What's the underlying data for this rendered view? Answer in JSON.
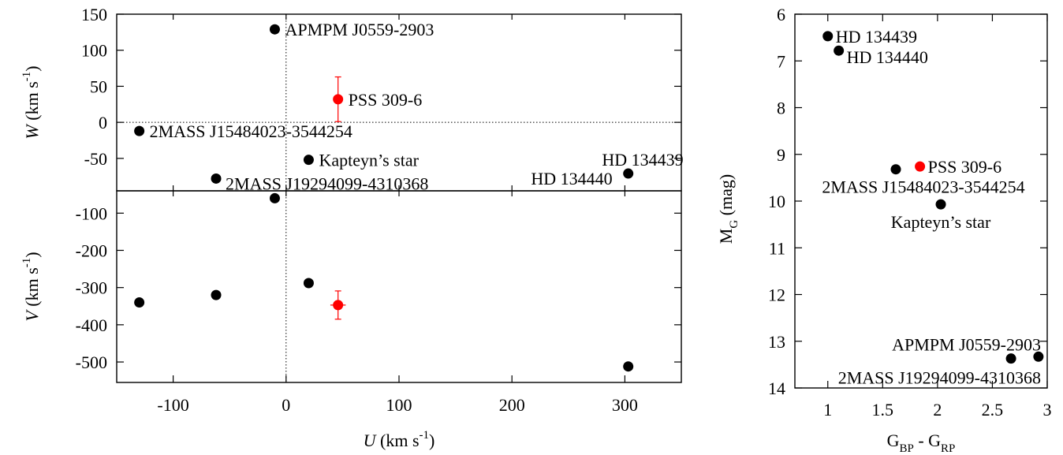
{
  "chart_data": [
    {
      "id": "uw",
      "type": "scatter",
      "title": "",
      "xlabel": "",
      "ylabel": {
        "italic": "W",
        "text": " (km s",
        "sup": "-1",
        "tail": ")"
      },
      "xlim": [
        -150,
        350
      ],
      "ylim": [
        -95,
        150
      ],
      "yticks": [
        150,
        100,
        50,
        0,
        -50
      ],
      "zero_lines": {
        "x": 0,
        "y": 0
      },
      "points": [
        {
          "name": "APMPM J0559-2903",
          "x": -10,
          "y": 129,
          "label": "APMPM J0559-2903",
          "label_pos": "right"
        },
        {
          "name": "PSS 309-6",
          "x": 46,
          "y": 32,
          "yerr": 31,
          "label": "PSS 309-6",
          "label_pos": "right",
          "highlight": true
        },
        {
          "name": "2MASS J15484023-3544254",
          "x": -130,
          "y": -12,
          "label": "2MASS J15484023-3544254",
          "label_pos": "right"
        },
        {
          "name": "Kapteyn's star",
          "x": 20,
          "y": -52,
          "label": "Kapteyn’s star",
          "label_pos": "right"
        },
        {
          "name": "2MASS J19294099-4310368",
          "x": -62,
          "y": -78,
          "label": "2MASS J19294099-4310368",
          "label_pos": "right-low"
        },
        {
          "name": "HD 134439",
          "x": 303,
          "y": -71,
          "label": "HD 134439",
          "label_pos": "left-up"
        },
        {
          "name": "HD 134440",
          "x": 303,
          "y": -71,
          "label": "HD 134440",
          "label_pos": "left-down"
        }
      ]
    },
    {
      "id": "uv",
      "type": "scatter",
      "title": "",
      "xlabel": {
        "italic": "U",
        "text": " (km s",
        "sup": "-1",
        "tail": ")"
      },
      "ylabel": {
        "italic": "V",
        "text": " (km s",
        "sup": "-1",
        "tail": ")"
      },
      "xlim": [
        -150,
        350
      ],
      "ylim": [
        -555,
        -40
      ],
      "xticks": [
        -100,
        0,
        100,
        200,
        300
      ],
      "yticks": [
        -100,
        -200,
        -300,
        -400,
        -500
      ],
      "zero_lines": {
        "x": 0
      },
      "points": [
        {
          "name": "APMPM J0559-2903",
          "x": -10,
          "y": -60
        },
        {
          "name": "Kapteyn's star",
          "x": 20,
          "y": -288
        },
        {
          "name": "PSS 309-6",
          "x": 46,
          "y": -347,
          "yerr": 38,
          "xerr": 4,
          "highlight": true
        },
        {
          "name": "2MASS J15484023-3544254",
          "x": -130,
          "y": -340
        },
        {
          "name": "2MASS J19294099-4310368",
          "x": -62,
          "y": -320
        },
        {
          "name": "HD 134439/HD 134440",
          "x": 303,
          "y": -512
        }
      ]
    },
    {
      "id": "cmd",
      "type": "scatter",
      "title": "",
      "xlabel": {
        "text": "G",
        "sub": "BP",
        "mid": " - G",
        "sub2": "RP"
      },
      "ylabel": {
        "text": "M",
        "sub": "G",
        "tail": " (mag)"
      },
      "xlim": [
        0.7,
        3.0
      ],
      "ylim": [
        6,
        14
      ],
      "y_inverted": true,
      "xticks": [
        "1",
        "1.5",
        "2",
        "2.5",
        "3"
      ],
      "yticks": [
        "6",
        "7",
        "8",
        "9",
        "10",
        "11",
        "12",
        "13",
        "14"
      ],
      "points": [
        {
          "name": "HD 134439",
          "x": 1.0,
          "y": 6.47,
          "label": "HD 134439",
          "label_pos": "right"
        },
        {
          "name": "HD 134440",
          "x": 1.1,
          "y": 6.78,
          "label": "HD 134440",
          "label_pos": "right-low"
        },
        {
          "name": "2MASS J15484023-3544254",
          "x": 1.62,
          "y": 9.32,
          "label": "2MASS J15484023-3544254",
          "label_pos": "below-center"
        },
        {
          "name": "PSS 309-6",
          "x": 1.84,
          "y": 9.26,
          "label": "PSS 309-6",
          "label_pos": "right",
          "highlight": true
        },
        {
          "name": "Kapteyn's star",
          "x": 2.03,
          "y": 10.07,
          "label": "Kapteyn’s star",
          "label_pos": "below"
        },
        {
          "name": "2MASS J19294099-4310368",
          "x": 2.67,
          "y": 13.37,
          "label": "2MASS J19294099-4310368",
          "label_pos": "below-left"
        },
        {
          "name": "APMPM J0559-2903",
          "x": 2.92,
          "y": 13.33,
          "label": "APMPM J0559-2903",
          "label_pos": "above-left"
        }
      ]
    }
  ],
  "colors": {
    "default_point": "#000000",
    "highlight_point": "#ff0000"
  }
}
